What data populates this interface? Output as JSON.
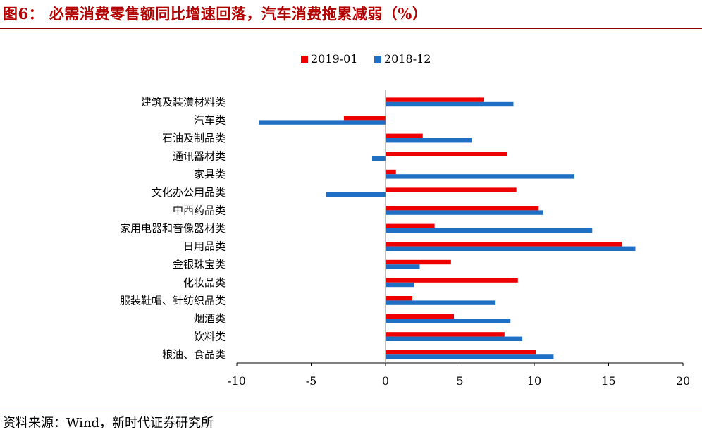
{
  "figure": {
    "title": "图6： 必需消费零售额同比增速回落，汽车消费拖累减弱（%）",
    "source": "资料来源：Wind，新时代证券研究所"
  },
  "colors": {
    "series_2019_01": "#ee0000",
    "series_2018_12": "#1f6fc5",
    "title": "#b30000"
  },
  "chart_data": {
    "type": "bar",
    "orientation": "horizontal",
    "categories": [
      "建筑及装潢材料类",
      "汽车类",
      "石油及制品类",
      "通讯器材类",
      "家具类",
      "文化办公用品类",
      "中西药品类",
      "家用电器和音像器材类",
      "日用品类",
      "金银珠宝类",
      "化妆品类",
      "服装鞋帽、针纺织品类",
      "烟酒类",
      "饮料类",
      "粮油、食品类"
    ],
    "series": [
      {
        "name": "2019-01",
        "color": "#ee0000",
        "values": [
          6.6,
          -2.8,
          2.5,
          8.2,
          0.7,
          8.8,
          10.3,
          3.3,
          15.9,
          4.4,
          8.9,
          1.8,
          4.6,
          8.0,
          10.1
        ]
      },
      {
        "name": "2018-12",
        "color": "#1f6fc5",
        "values": [
          8.6,
          -8.5,
          5.8,
          -0.9,
          12.7,
          -4.0,
          10.6,
          13.9,
          16.8,
          2.3,
          1.9,
          7.4,
          8.4,
          9.2,
          11.3
        ]
      }
    ],
    "xlim": [
      -10,
      20
    ],
    "xticks": [
      -10,
      -5,
      0,
      5,
      10,
      15,
      20
    ],
    "xlabel": "",
    "ylabel": "",
    "grid": false,
    "legend_position": "top-center"
  }
}
